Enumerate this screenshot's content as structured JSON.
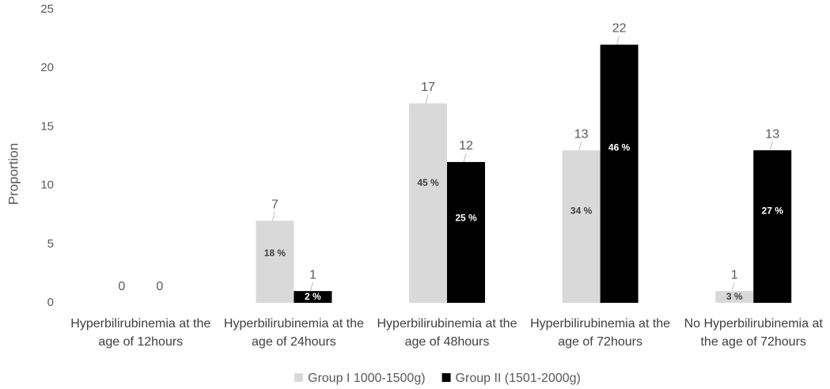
{
  "chart_data": {
    "type": "bar",
    "y_label": "Proportion",
    "categories": [
      "Hyperbilirubinemia at the age of 12hours",
      "Hyperbilirubinemia at the age of 24hours",
      "Hyperbilirubinemia at the age of 48hours",
      "Hyperbilirubinemia at the age of 72hours",
      "No Hyperbilirubinemia at the age of 72hours"
    ],
    "series": [
      {
        "name": "Group I 1000-1500g)",
        "color": "#d9d9d9",
        "values": [
          0,
          7,
          17,
          13,
          1
        ],
        "percent_labels": [
          null,
          "18 %",
          "45 %",
          "34 %",
          "3 %"
        ]
      },
      {
        "name": "Group II (1501-2000g)",
        "color": "#000000",
        "values": [
          0,
          1,
          12,
          22,
          13
        ],
        "percent_labels": [
          null,
          "2 %",
          "25 %",
          "46 %",
          "27 %"
        ]
      }
    ],
    "ylim": [
      0,
      25
    ],
    "yticks": [
      0,
      5,
      10,
      15,
      20,
      25
    ],
    "grid": false,
    "legend": "bottom"
  }
}
